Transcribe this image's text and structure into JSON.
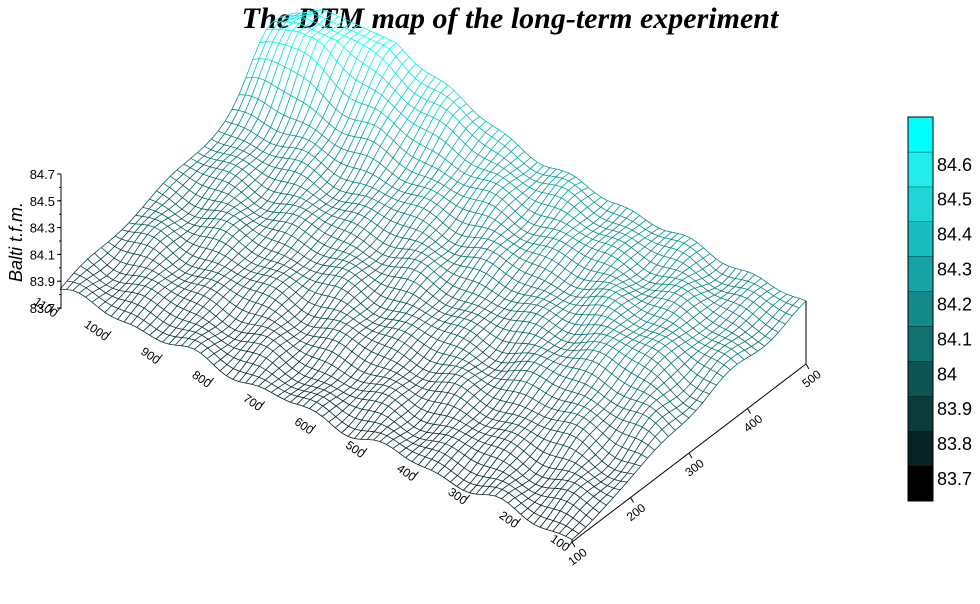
{
  "chart_data": {
    "type": "surface",
    "title": "The DTM map of the long-term experiment",
    "zlabel": "Balti t.f.m.",
    "z_ticks": [
      "84.7",
      "84.5",
      "84.3",
      "84.1",
      "83.9",
      "83.7"
    ],
    "zlim": [
      83.7,
      84.7
    ],
    "y_axis_ticks": [
      "1100",
      "1000",
      "900",
      "800",
      "700",
      "600",
      "500",
      "400",
      "300",
      "200",
      "100"
    ],
    "ylim": [
      100,
      1100
    ],
    "x_axis_ticks": [
      "100",
      "200",
      "300",
      "400",
      "500"
    ],
    "xlim": [
      100,
      500
    ],
    "colorbar": {
      "ticks": [
        "84.6",
        "84.5",
        "84.4",
        "84.3",
        "84.2",
        "84.1",
        "84",
        "83.9",
        "83.8",
        "83.7"
      ],
      "colors": [
        "#000000",
        "#062222",
        "#0b3b3b",
        "#0e5454",
        "#117070",
        "#148989",
        "#17a3a3",
        "#1bbcbc",
        "#1fd6d6",
        "#22ecec",
        "#00ffff"
      ]
    },
    "surface_shape": "low ridge of about 83.7–83.9 along the 100–1100 edge, rising to peaks near 84.6–84.7 at the upper-left back, with a second high area on the right side",
    "grid": true
  }
}
